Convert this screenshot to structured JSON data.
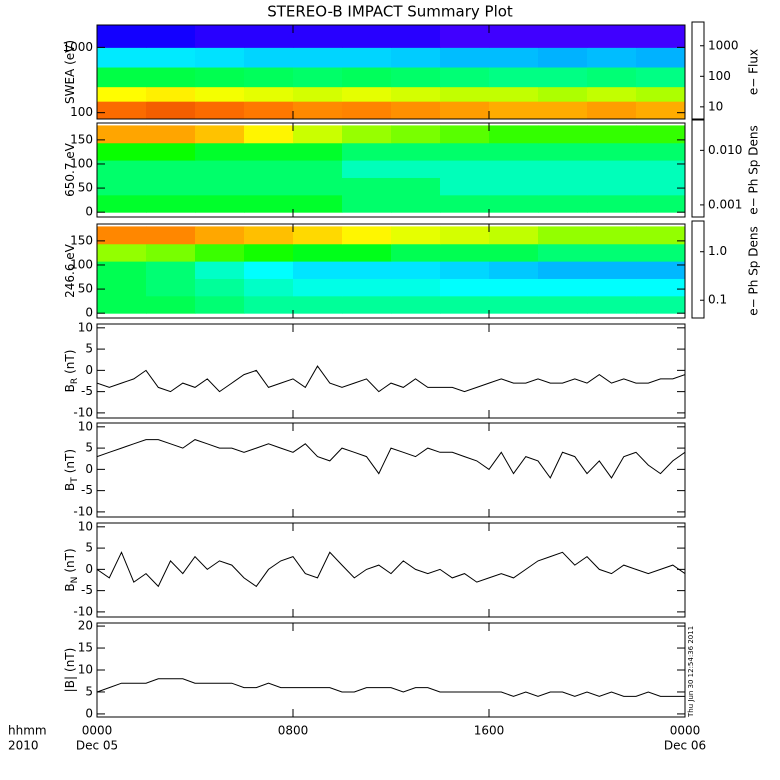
{
  "title": "STEREO-B IMPACT Summary Plot",
  "timestamp": "Thu Jun 30 12:54:36 2011",
  "x_axis": {
    "xlim": [
      0,
      24
    ],
    "xticks": [
      {
        "value": 0,
        "label": "0000"
      },
      {
        "value": 8,
        "label": "0800"
      },
      {
        "value": 16,
        "label": "1600"
      },
      {
        "value": 24,
        "label": "0000"
      }
    ],
    "date_labels": [
      {
        "value": 0,
        "label": "Dec 05"
      },
      {
        "value": 24,
        "label": "Dec 06"
      }
    ],
    "label": "hhmm",
    "year": "2010"
  },
  "chart_data": [
    {
      "type": "heatmap",
      "ylabel": "SWEA (eV)",
      "ylog": true,
      "ylim": [
        80,
        2200
      ],
      "yticks": [
        100,
        1000
      ],
      "colormap": "rainbow",
      "x_bins": [
        0,
        2,
        4,
        6,
        8,
        10,
        12,
        14,
        16,
        18,
        20,
        22,
        24
      ],
      "y_bins": [
        80,
        150,
        250,
        500,
        1000,
        2200
      ],
      "values": [
        [
          3000,
          3200,
          3000,
          2800,
          2500,
          2600,
          2400,
          2200,
          2000,
          2000,
          2200,
          2000
        ],
        [
          1200,
          1300,
          1100,
          1000,
          900,
          1000,
          900,
          800,
          800,
          700,
          800,
          700
        ],
        [
          150,
          150,
          140,
          130,
          120,
          130,
          120,
          110,
          100,
          100,
          110,
          100
        ],
        [
          40,
          40,
          38,
          35,
          35,
          35,
          33,
          30,
          30,
          28,
          30,
          28
        ],
        [
          8,
          8,
          7,
          7,
          7,
          7,
          7,
          6,
          6,
          6,
          6,
          6
        ]
      ],
      "colorbar": {
        "label": "e− Flux",
        "log": true,
        "clim": [
          4,
          6000
        ],
        "ticks": [
          10,
          100,
          1000
        ]
      }
    },
    {
      "type": "heatmap",
      "ylabel": "650.7 eV",
      "ylog": false,
      "ylim": [
        -10,
        185
      ],
      "yticks": [
        0,
        50,
        100,
        150
      ],
      "colormap": "rainbow",
      "x_bins": [
        0,
        2,
        4,
        6,
        8,
        10,
        12,
        14,
        16,
        18,
        20,
        22,
        24
      ],
      "y_bins": [
        0,
        36,
        72,
        108,
        144,
        180
      ],
      "values": [
        [
          0.005,
          0.005,
          0.005,
          0.005,
          0.005,
          0.004,
          0.004,
          0.004,
          0.004,
          0.004,
          0.004,
          0.004
        ],
        [
          0.004,
          0.004,
          0.004,
          0.004,
          0.004,
          0.004,
          0.004,
          0.003,
          0.003,
          0.003,
          0.003,
          0.003
        ],
        [
          0.004,
          0.004,
          0.004,
          0.004,
          0.004,
          0.003,
          0.003,
          0.003,
          0.003,
          0.003,
          0.003,
          0.003
        ],
        [
          0.006,
          0.006,
          0.005,
          0.005,
          0.005,
          0.004,
          0.004,
          0.004,
          0.004,
          0.004,
          0.004,
          0.004
        ],
        [
          0.02,
          0.02,
          0.018,
          0.015,
          0.012,
          0.01,
          0.009,
          0.008,
          0.007,
          0.007,
          0.007,
          0.007
        ]
      ],
      "colorbar": {
        "label": "e− Ph Sp Dens",
        "log": true,
        "clim": [
          0.0006,
          0.036
        ],
        "ticks": [
          {
            "value": 0.01,
            "label": "0.010"
          },
          0.001
        ]
      }
    },
    {
      "type": "heatmap",
      "ylabel": "246.6 eV",
      "ylog": false,
      "ylim": [
        -10,
        185
      ],
      "yticks": [
        0,
        50,
        100,
        150
      ],
      "colormap": "rainbow",
      "x_bins": [
        0,
        2,
        4,
        6,
        8,
        10,
        12,
        14,
        16,
        18,
        20,
        22,
        24
      ],
      "y_bins": [
        0,
        36,
        72,
        108,
        144,
        180
      ],
      "values": [
        [
          0.4,
          0.4,
          0.35,
          0.3,
          0.3,
          0.3,
          0.3,
          0.3,
          0.3,
          0.3,
          0.3,
          0.3
        ],
        [
          0.4,
          0.35,
          0.3,
          0.25,
          0.22,
          0.22,
          0.22,
          0.2,
          0.2,
          0.2,
          0.2,
          0.2
        ],
        [
          0.4,
          0.35,
          0.25,
          0.2,
          0.18,
          0.18,
          0.18,
          0.17,
          0.16,
          0.15,
          0.15,
          0.15
        ],
        [
          1.0,
          0.9,
          0.7,
          0.6,
          0.5,
          0.5,
          0.4,
          0.4,
          0.4,
          0.35,
          0.35,
          0.35
        ],
        [
          2.5,
          2.5,
          2.2,
          2.0,
          1.8,
          1.6,
          1.4,
          1.3,
          1.2,
          1.0,
          1.0,
          1.0
        ]
      ],
      "colorbar": {
        "label": "e− Ph Sp Dens",
        "log": true,
        "clim": [
          0.043,
          4.3
        ],
        "ticks": [
          {
            "value": 1,
            "label": "1.0"
          },
          0.1
        ]
      }
    },
    {
      "type": "line",
      "ylabel": "B",
      "ylabel_sub": "R",
      "ylabel_unit": "(nT)",
      "ylim": [
        -11.2,
        10.9
      ],
      "yticks": [
        -10,
        -5,
        0,
        5,
        10
      ],
      "color": "#000000",
      "x": [
        0,
        0.5,
        1,
        1.5,
        2,
        2.5,
        3,
        3.5,
        4,
        4.5,
        5,
        5.5,
        6,
        6.5,
        7,
        7.5,
        8,
        8.5,
        9,
        9.5,
        10,
        10.5,
        11,
        11.5,
        12,
        12.5,
        13,
        13.5,
        14,
        14.5,
        15,
        15.5,
        16,
        16.5,
        17,
        17.5,
        18,
        18.5,
        19,
        19.5,
        20,
        20.5,
        21,
        21.5,
        22,
        22.5,
        23,
        23.5,
        24
      ],
      "values": [
        -3,
        -4,
        -3,
        -2,
        0,
        -4,
        -5,
        -3,
        -4,
        -2,
        -5,
        -3,
        -1,
        0,
        -4,
        -3,
        -2,
        -4,
        1,
        -3,
        -4,
        -3,
        -2,
        -5,
        -3,
        -4,
        -2,
        -4,
        -4,
        -4,
        -5,
        -4,
        -3,
        -2,
        -3,
        -3,
        -2,
        -3,
        -3,
        -2,
        -3,
        -1,
        -3,
        -2,
        -3,
        -3,
        -2,
        -2,
        -1
      ]
    },
    {
      "type": "line",
      "ylabel": "B",
      "ylabel_sub": "T",
      "ylabel_unit": "(nT)",
      "ylim": [
        -11.2,
        10.9
      ],
      "yticks": [
        -10,
        -5,
        0,
        5,
        10
      ],
      "color": "#000000",
      "x": [
        0,
        0.5,
        1,
        1.5,
        2,
        2.5,
        3,
        3.5,
        4,
        4.5,
        5,
        5.5,
        6,
        6.5,
        7,
        7.5,
        8,
        8.5,
        9,
        9.5,
        10,
        10.5,
        11,
        11.5,
        12,
        12.5,
        13,
        13.5,
        14,
        14.5,
        15,
        15.5,
        16,
        16.5,
        17,
        17.5,
        18,
        18.5,
        19,
        19.5,
        20,
        20.5,
        21,
        21.5,
        22,
        22.5,
        23,
        23.5,
        24
      ],
      "values": [
        3,
        4,
        5,
        6,
        7,
        7,
        6,
        5,
        7,
        6,
        5,
        5,
        4,
        5,
        6,
        5,
        4,
        6,
        3,
        2,
        5,
        4,
        3,
        -1,
        5,
        4,
        3,
        5,
        4,
        4,
        3,
        2,
        0,
        4,
        -1,
        3,
        2,
        -2,
        4,
        3,
        -1,
        2,
        -2,
        3,
        4,
        1,
        -1,
        2,
        4
      ]
    },
    {
      "type": "line",
      "ylabel": "B",
      "ylabel_sub": "N",
      "ylabel_unit": "(nT)",
      "ylim": [
        -11.2,
        10.9
      ],
      "yticks": [
        -10,
        -5,
        0,
        5,
        10
      ],
      "color": "#000000",
      "x": [
        0,
        0.5,
        1,
        1.5,
        2,
        2.5,
        3,
        3.5,
        4,
        4.5,
        5,
        5.5,
        6,
        6.5,
        7,
        7.5,
        8,
        8.5,
        9,
        9.5,
        10,
        10.5,
        11,
        11.5,
        12,
        12.5,
        13,
        13.5,
        14,
        14.5,
        15,
        15.5,
        16,
        16.5,
        17,
        17.5,
        18,
        18.5,
        19,
        19.5,
        20,
        20.5,
        21,
        21.5,
        22,
        22.5,
        23,
        23.5,
        24
      ],
      "values": [
        0,
        -2,
        4,
        -3,
        -1,
        -4,
        2,
        -1,
        3,
        0,
        2,
        1,
        -2,
        -4,
        0,
        2,
        3,
        -1,
        -2,
        4,
        1,
        -2,
        0,
        1,
        -1,
        2,
        0,
        -1,
        0,
        -2,
        -1,
        -3,
        -2,
        -1,
        -2,
        0,
        2,
        3,
        4,
        1,
        3,
        0,
        -1,
        1,
        0,
        -1,
        0,
        1,
        -1
      ]
    },
    {
      "type": "line",
      "ylabel": "|B|",
      "ylabel_unit": "(nT)",
      "ylim": [
        -0.7,
        20.7
      ],
      "yticks": [
        0,
        5,
        10,
        15,
        20
      ],
      "color": "#000000",
      "x": [
        0,
        0.5,
        1,
        1.5,
        2,
        2.5,
        3,
        3.5,
        4,
        4.5,
        5,
        5.5,
        6,
        6.5,
        7,
        7.5,
        8,
        8.5,
        9,
        9.5,
        10,
        10.5,
        11,
        11.5,
        12,
        12.5,
        13,
        13.5,
        14,
        14.5,
        15,
        15.5,
        16,
        16.5,
        17,
        17.5,
        18,
        18.5,
        19,
        19.5,
        20,
        20.5,
        21,
        21.5,
        22,
        22.5,
        23,
        23.5,
        24
      ],
      "values": [
        5,
        6,
        7,
        7,
        7,
        8,
        8,
        8,
        7,
        7,
        7,
        7,
        6,
        6,
        7,
        6,
        6,
        6,
        6,
        6,
        5,
        5,
        6,
        6,
        6,
        5,
        6,
        6,
        5,
        5,
        5,
        5,
        5,
        5,
        4,
        5,
        4,
        5,
        5,
        4,
        5,
        4,
        5,
        4,
        4,
        5,
        4,
        4,
        4
      ]
    }
  ]
}
